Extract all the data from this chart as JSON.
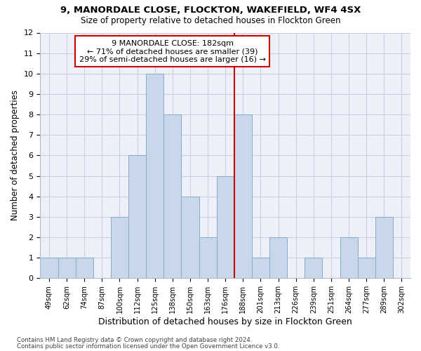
{
  "title1": "9, MANORDALE CLOSE, FLOCKTON, WAKEFIELD, WF4 4SX",
  "title2": "Size of property relative to detached houses in Flockton Green",
  "xlabel": "Distribution of detached houses by size in Flockton Green",
  "ylabel": "Number of detached properties",
  "categories": [
    "49sqm",
    "62sqm",
    "74sqm",
    "87sqm",
    "100sqm",
    "112sqm",
    "125sqm",
    "138sqm",
    "150sqm",
    "163sqm",
    "176sqm",
    "188sqm",
    "201sqm",
    "213sqm",
    "226sqm",
    "239sqm",
    "251sqm",
    "264sqm",
    "277sqm",
    "289sqm",
    "302sqm"
  ],
  "values": [
    1,
    1,
    1,
    0,
    3,
    6,
    10,
    8,
    4,
    2,
    5,
    8,
    1,
    2,
    0,
    1,
    0,
    2,
    1,
    3,
    0
  ],
  "bar_color": "#c8d8ea",
  "bar_edge_color": "#8aaac8",
  "vline_color": "#cc0000",
  "annotation_text": "9 MANORDALE CLOSE: 182sqm\n← 71% of detached houses are smaller (39)\n29% of semi-detached houses are larger (16) →",
  "annotation_box_color": "#ffffff",
  "annotation_box_edge": "#cc0000",
  "ylim": [
    0,
    12
  ],
  "yticks": [
    0,
    1,
    2,
    3,
    4,
    5,
    6,
    7,
    8,
    9,
    10,
    11,
    12
  ],
  "footer1": "Contains HM Land Registry data © Crown copyright and database right 2024.",
  "footer2": "Contains public sector information licensed under the Open Government Licence v3.0.",
  "grid_color": "#c8d0e0",
  "bg_color": "#edf0f8"
}
